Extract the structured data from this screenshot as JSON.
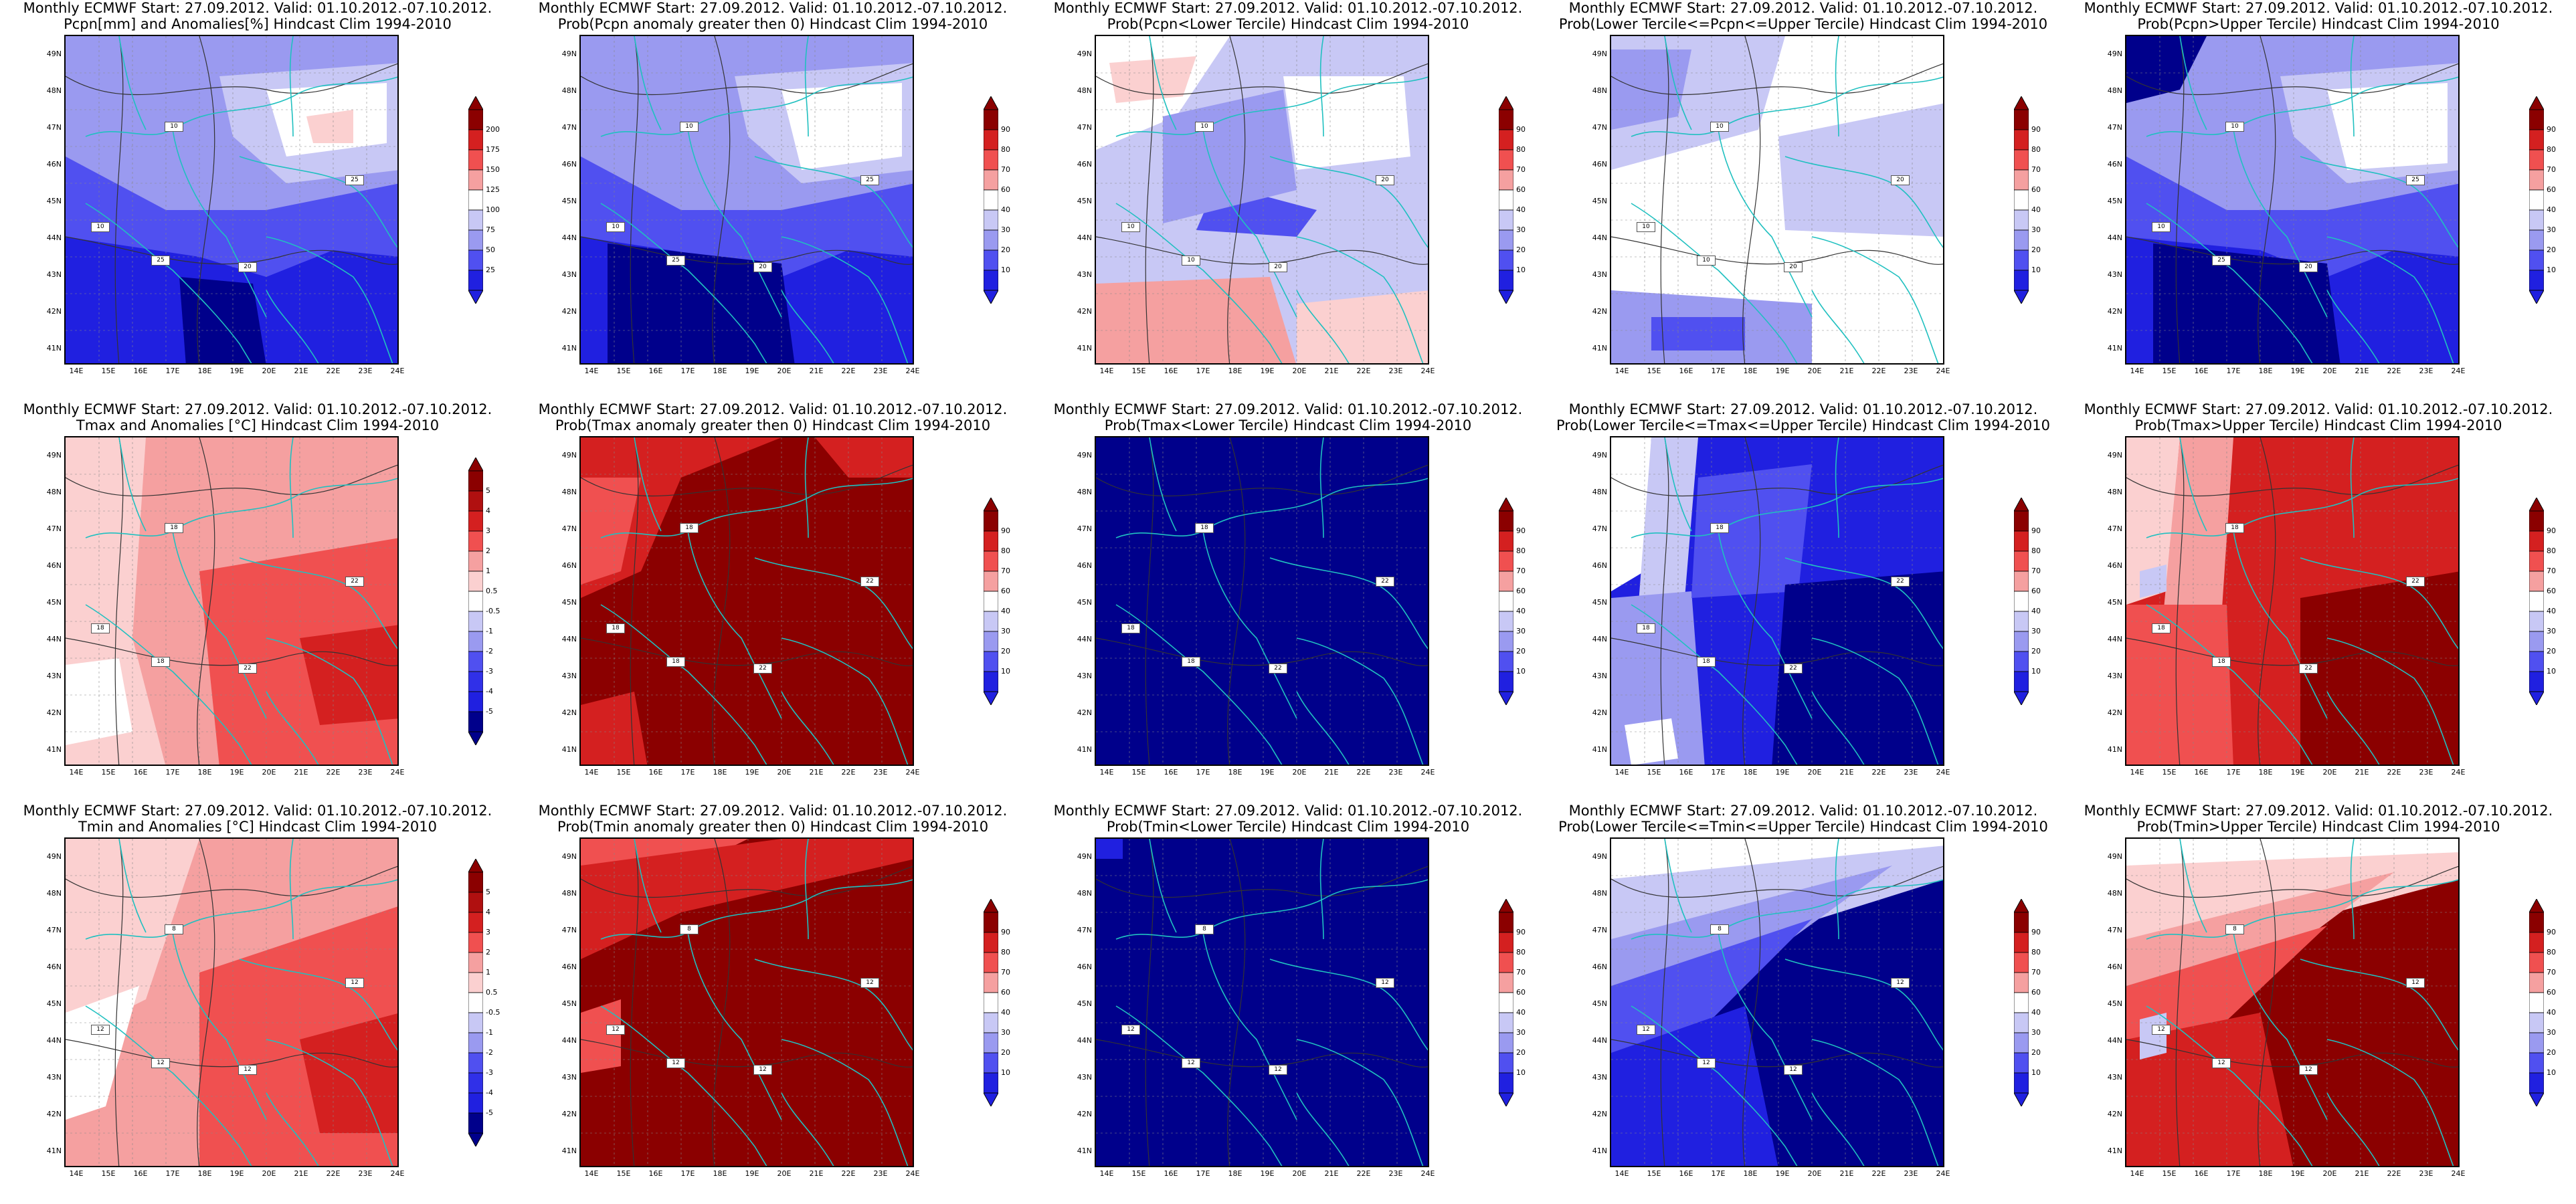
{
  "rows": [
    {
      "panels": [
        {
          "line1": "Monthly ECMWF Start: 27.09.2012. Valid: 01.10.2012.-07.10.2012.",
          "line2": "Pcpn[mm] and Anomalies[%] Hindcast Clim 1994-2010",
          "scale": "pcpn",
          "fill": "precip_anom",
          "labels": [
            "10",
            "10",
            "25",
            "20",
            "25"
          ]
        },
        {
          "line1": "Monthly ECMWF Start: 27.09.2012. Valid: 01.10.2012.-07.10.2012.",
          "line2": "Prob(Pcpn anomaly greater then 0) Hindcast Clim 1994-2010",
          "scale": "prob",
          "fill": "precip_prob",
          "labels": [
            "10",
            "10",
            "25",
            "20",
            "25"
          ]
        },
        {
          "line1": "Monthly ECMWF Start: 27.09.2012. Valid: 01.10.2012.-07.10.2012.",
          "line2": "Prob(Pcpn<Lower Tercile) Hindcast Clim 1994-2010",
          "scale": "prob",
          "fill": "precip_lower",
          "labels": [
            "10",
            "10",
            "10",
            "20",
            "20"
          ]
        },
        {
          "line1": "Monthly ECMWF Start: 27.09.2012. Valid: 01.10.2012.-07.10.2012.",
          "line2": "Prob(Lower Tercile<=Pcpn<=Upper Tercile) Hindcast Clim 1994-2010",
          "scale": "prob",
          "fill": "precip_mid",
          "labels": [
            "10",
            "10",
            "10",
            "20",
            "20"
          ]
        },
        {
          "line1": "Monthly ECMWF Start: 27.09.2012. Valid: 01.10.2012.-07.10.2012.",
          "line2": "Prob(Pcpn>Upper Tercile) Hindcast Clim 1994-2010",
          "scale": "prob",
          "fill": "precip_upper",
          "labels": [
            "10",
            "10",
            "25",
            "20",
            "25"
          ]
        }
      ]
    },
    {
      "panels": [
        {
          "line1": "Monthly ECMWF Start: 27.09.2012. Valid: 01.10.2012.-07.10.2012.",
          "line2": "Tmax and Anomalies [°C] Hindcast Clim 1994-2010",
          "scale": "anom",
          "fill": "tmax_anom",
          "labels": [
            "18",
            "18",
            "18",
            "22",
            "22"
          ]
        },
        {
          "line1": "Monthly ECMWF Start: 27.09.2012. Valid: 01.10.2012.-07.10.2012.",
          "line2": "Prob(Tmax anomaly greater then 0) Hindcast Clim 1994-2010",
          "scale": "prob",
          "fill": "tmax_prob",
          "labels": [
            "18",
            "18",
            "18",
            "22",
            "22"
          ]
        },
        {
          "line1": "Monthly ECMWF Start: 27.09.2012. Valid: 01.10.2012.-07.10.2012.",
          "line2": "Prob(Tmax<Lower Tercile) Hindcast Clim 1994-2010",
          "scale": "prob",
          "fill": "tmax_lower",
          "labels": [
            "18",
            "18",
            "18",
            "22",
            "22"
          ]
        },
        {
          "line1": "Monthly ECMWF Start: 27.09.2012. Valid: 01.10.2012.-07.10.2012.",
          "line2": "Prob(Lower Tercile<=Tmax<=Upper Tercile) Hindcast Clim 1994-2010",
          "scale": "prob",
          "fill": "tmax_mid",
          "labels": [
            "18",
            "18",
            "18",
            "22",
            "22"
          ]
        },
        {
          "line1": "Monthly ECMWF Start: 27.09.2012. Valid: 01.10.2012.-07.10.2012.",
          "line2": "Prob(Tmax>Upper Tercile) Hindcast Clim 1994-2010",
          "scale": "prob",
          "fill": "tmax_upper",
          "labels": [
            "18",
            "18",
            "18",
            "22",
            "22"
          ]
        }
      ]
    },
    {
      "panels": [
        {
          "line1": "Monthly ECMWF Start: 27.09.2012. Valid: 01.10.2012.-07.10.2012.",
          "line2": "Tmin and Anomalies [°C] Hindcast Clim 1994-2010",
          "scale": "anom",
          "fill": "tmin_anom",
          "labels": [
            "8",
            "12",
            "12",
            "12",
            "12"
          ]
        },
        {
          "line1": "Monthly ECMWF Start: 27.09.2012. Valid: 01.10.2012.-07.10.2012.",
          "line2": "Prob(Tmin anomaly greater then 0) Hindcast Clim 1994-2010",
          "scale": "prob",
          "fill": "tmin_prob",
          "labels": [
            "8",
            "12",
            "12",
            "12",
            "12"
          ]
        },
        {
          "line1": "Monthly ECMWF Start: 27.09.2012. Valid: 01.10.2012.-07.10.2012.",
          "line2": "Prob(Tmin<Lower Tercile) Hindcast Clim 1994-2010",
          "scale": "prob",
          "fill": "tmin_lower",
          "labels": [
            "8",
            "12",
            "12",
            "12",
            "12"
          ]
        },
        {
          "line1": "Monthly ECMWF Start: 27.09.2012. Valid: 01.10.2012.-07.10.2012.",
          "line2": "Prob(Lower Tercile<=Tmin<=Upper Tercile) Hindcast Clim 1994-2010",
          "scale": "prob",
          "fill": "tmin_mid",
          "labels": [
            "8",
            "12",
            "12",
            "12",
            "12"
          ]
        },
        {
          "line1": "Monthly ECMWF Start: 27.09.2012. Valid: 01.10.2012.-07.10.2012.",
          "line2": "Prob(Tmin>Upper Tercile) Hindcast Clim 1994-2010",
          "scale": "prob",
          "fill": "tmin_upper",
          "labels": [
            "8",
            "12",
            "12",
            "12",
            "12"
          ]
        }
      ]
    }
  ],
  "lat_labels": [
    "49N",
    "48N",
    "47N",
    "46N",
    "45N",
    "44N",
    "43N",
    "42N",
    "41N"
  ],
  "lon_labels": [
    "14E",
    "15E",
    "16E",
    "17E",
    "18E",
    "19E",
    "20E",
    "21E",
    "22E",
    "23E",
    "24E"
  ],
  "scales": {
    "pcpn": [
      "200",
      "175",
      "150",
      "125",
      "100",
      "75",
      "50",
      "25"
    ],
    "prob": [
      "90",
      "80",
      "70",
      "60",
      "40",
      "30",
      "20",
      "10"
    ],
    "anom": [
      "5",
      "4",
      "3",
      "2",
      "1",
      "0.5",
      "-0.5",
      "-1",
      "-2",
      "-3",
      "-4",
      "-5"
    ]
  },
  "colors": {
    "dark_red": "#8b0000",
    "red": "#d42020",
    "mid_red": "#f05050",
    "light_red": "#f5a0a0",
    "pale_red": "#fbd0d0",
    "white": "#ffffff",
    "pale_blue": "#c8c8f5",
    "light_blue": "#9a9af0",
    "mid_blue": "#5050f0",
    "blue": "#2020e0",
    "dark_blue": "#00008b",
    "border": "#20c0c0",
    "contour": "#333333"
  }
}
